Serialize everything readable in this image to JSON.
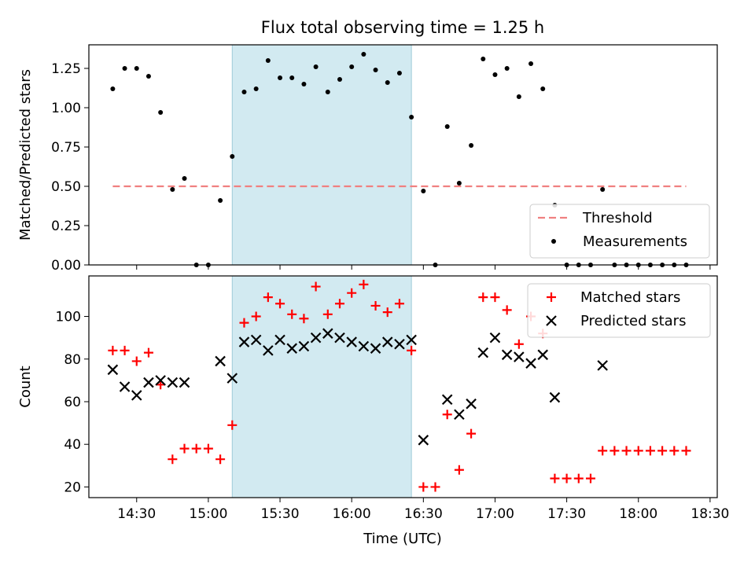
{
  "chart_data": [
    {
      "type": "scatter",
      "title": "Flux total observing time = 1.25 h",
      "ylabel": "Matched/Predicted stars",
      "xlabel": "",
      "xlim": [
        "14:10",
        "18:33"
      ],
      "ylim": [
        0,
        1.4
      ],
      "yticks": [
        "0.00",
        "0.25",
        "0.50",
        "0.75",
        "1.00",
        "1.25"
      ],
      "highlight_span": {
        "from": "15:10",
        "to": "16:25",
        "color": "#add8e6"
      },
      "legend": {
        "position": "lower-right",
        "entries": [
          "Threshold",
          "Measurements"
        ]
      },
      "series": [
        {
          "name": "Threshold",
          "style": "dashed-line",
          "color": "#f08080",
          "points": [
            {
              "x": "14:20",
              "y": 0.5
            },
            {
              "x": "18:20",
              "y": 0.5
            }
          ]
        },
        {
          "name": "Measurements",
          "style": "dot",
          "color": "#000000",
          "points": [
            {
              "x": "14:20",
              "y": 1.12
            },
            {
              "x": "14:25",
              "y": 1.25
            },
            {
              "x": "14:30",
              "y": 1.25
            },
            {
              "x": "14:35",
              "y": 1.2
            },
            {
              "x": "14:40",
              "y": 0.97
            },
            {
              "x": "14:45",
              "y": 0.48
            },
            {
              "x": "14:50",
              "y": 0.55
            },
            {
              "x": "14:55",
              "y": 0.0
            },
            {
              "x": "15:00",
              "y": 0.0
            },
            {
              "x": "15:05",
              "y": 0.41
            },
            {
              "x": "15:10",
              "y": 0.69
            },
            {
              "x": "15:15",
              "y": 1.1
            },
            {
              "x": "15:20",
              "y": 1.12
            },
            {
              "x": "15:25",
              "y": 1.3
            },
            {
              "x": "15:30",
              "y": 1.19
            },
            {
              "x": "15:35",
              "y": 1.19
            },
            {
              "x": "15:40",
              "y": 1.15
            },
            {
              "x": "15:45",
              "y": 1.26
            },
            {
              "x": "15:50",
              "y": 1.1
            },
            {
              "x": "15:55",
              "y": 1.18
            },
            {
              "x": "16:00",
              "y": 1.26
            },
            {
              "x": "16:05",
              "y": 1.34
            },
            {
              "x": "16:10",
              "y": 1.24
            },
            {
              "x": "16:15",
              "y": 1.16
            },
            {
              "x": "16:20",
              "y": 1.22
            },
            {
              "x": "16:25",
              "y": 0.94
            },
            {
              "x": "16:30",
              "y": 0.47
            },
            {
              "x": "16:35",
              "y": 0.0
            },
            {
              "x": "16:40",
              "y": 0.88
            },
            {
              "x": "16:45",
              "y": 0.52
            },
            {
              "x": "16:50",
              "y": 0.76
            },
            {
              "x": "16:55",
              "y": 1.31
            },
            {
              "x": "17:00",
              "y": 1.21
            },
            {
              "x": "17:05",
              "y": 1.25
            },
            {
              "x": "17:10",
              "y": 1.07
            },
            {
              "x": "17:15",
              "y": 1.28
            },
            {
              "x": "17:20",
              "y": 1.12
            },
            {
              "x": "17:25",
              "y": 0.38
            },
            {
              "x": "17:30",
              "y": 0.0
            },
            {
              "x": "17:35",
              "y": 0.0
            },
            {
              "x": "17:40",
              "y": 0.0
            },
            {
              "x": "17:45",
              "y": 0.48
            },
            {
              "x": "17:50",
              "y": 0.0
            },
            {
              "x": "17:55",
              "y": 0.0
            },
            {
              "x": "18:00",
              "y": 0.0
            },
            {
              "x": "18:05",
              "y": 0.0
            },
            {
              "x": "18:10",
              "y": 0.0
            },
            {
              "x": "18:15",
              "y": 0.0
            },
            {
              "x": "18:20",
              "y": 0.0
            }
          ]
        }
      ]
    },
    {
      "type": "scatter",
      "title": "",
      "xlabel": "Time (UTC)",
      "ylabel": "Count",
      "xlim": [
        "14:10",
        "18:33"
      ],
      "ylim": [
        15,
        119
      ],
      "xticks": [
        "14:30",
        "15:00",
        "15:30",
        "16:00",
        "16:30",
        "17:00",
        "17:30",
        "18:00",
        "18:30"
      ],
      "yticks": [
        "20",
        "40",
        "60",
        "80",
        "100"
      ],
      "highlight_span": {
        "from": "15:10",
        "to": "16:25",
        "color": "#add8e6"
      },
      "legend": {
        "position": "upper-right",
        "entries": [
          "Matched stars",
          "Predicted stars"
        ]
      },
      "series": [
        {
          "name": "Matched stars",
          "marker": "+",
          "color": "#ff0000",
          "points": [
            {
              "x": "14:20",
              "y": 84
            },
            {
              "x": "14:25",
              "y": 84
            },
            {
              "x": "14:30",
              "y": 79
            },
            {
              "x": "14:35",
              "y": 83
            },
            {
              "x": "14:40",
              "y": 68
            },
            {
              "x": "14:45",
              "y": 33
            },
            {
              "x": "14:50",
              "y": 38
            },
            {
              "x": "14:55",
              "y": 38
            },
            {
              "x": "15:00",
              "y": 38
            },
            {
              "x": "15:05",
              "y": 33
            },
            {
              "x": "15:10",
              "y": 49
            },
            {
              "x": "15:15",
              "y": 97
            },
            {
              "x": "15:20",
              "y": 100
            },
            {
              "x": "15:25",
              "y": 109
            },
            {
              "x": "15:30",
              "y": 106
            },
            {
              "x": "15:35",
              "y": 101
            },
            {
              "x": "15:40",
              "y": 99
            },
            {
              "x": "15:45",
              "y": 114
            },
            {
              "x": "15:50",
              "y": 101
            },
            {
              "x": "15:55",
              "y": 106
            },
            {
              "x": "16:00",
              "y": 111
            },
            {
              "x": "16:05",
              "y": 115
            },
            {
              "x": "16:10",
              "y": 105
            },
            {
              "x": "16:15",
              "y": 102
            },
            {
              "x": "16:20",
              "y": 106
            },
            {
              "x": "16:25",
              "y": 84
            },
            {
              "x": "16:30",
              "y": 20
            },
            {
              "x": "16:35",
              "y": 20
            },
            {
              "x": "16:40",
              "y": 54
            },
            {
              "x": "16:45",
              "y": 28
            },
            {
              "x": "16:50",
              "y": 45
            },
            {
              "x": "16:55",
              "y": 109
            },
            {
              "x": "17:00",
              "y": 109
            },
            {
              "x": "17:05",
              "y": 103
            },
            {
              "x": "17:10",
              "y": 87
            },
            {
              "x": "17:15",
              "y": 100
            },
            {
              "x": "17:20",
              "y": 92
            },
            {
              "x": "17:25",
              "y": 24
            },
            {
              "x": "17:30",
              "y": 24
            },
            {
              "x": "17:35",
              "y": 24
            },
            {
              "x": "17:40",
              "y": 24
            },
            {
              "x": "17:45",
              "y": 37
            },
            {
              "x": "17:50",
              "y": 37
            },
            {
              "x": "17:55",
              "y": 37
            },
            {
              "x": "18:00",
              "y": 37
            },
            {
              "x": "18:05",
              "y": 37
            },
            {
              "x": "18:10",
              "y": 37
            },
            {
              "x": "18:15",
              "y": 37
            },
            {
              "x": "18:20",
              "y": 37
            }
          ]
        },
        {
          "name": "Predicted stars",
          "marker": "x",
          "color": "#000000",
          "points": [
            {
              "x": "14:20",
              "y": 75
            },
            {
              "x": "14:25",
              "y": 67
            },
            {
              "x": "14:30",
              "y": 63
            },
            {
              "x": "14:35",
              "y": 69
            },
            {
              "x": "14:40",
              "y": 70
            },
            {
              "x": "14:45",
              "y": 69
            },
            {
              "x": "14:50",
              "y": 69
            },
            {
              "x": "15:05",
              "y": 79
            },
            {
              "x": "15:10",
              "y": 71
            },
            {
              "x": "15:15",
              "y": 88
            },
            {
              "x": "15:20",
              "y": 89
            },
            {
              "x": "15:25",
              "y": 84
            },
            {
              "x": "15:30",
              "y": 89
            },
            {
              "x": "15:35",
              "y": 85
            },
            {
              "x": "15:40",
              "y": 86
            },
            {
              "x": "15:45",
              "y": 90
            },
            {
              "x": "15:50",
              "y": 92
            },
            {
              "x": "15:55",
              "y": 90
            },
            {
              "x": "16:00",
              "y": 88
            },
            {
              "x": "16:05",
              "y": 86
            },
            {
              "x": "16:10",
              "y": 85
            },
            {
              "x": "16:15",
              "y": 88
            },
            {
              "x": "16:20",
              "y": 87
            },
            {
              "x": "16:25",
              "y": 89
            },
            {
              "x": "16:30",
              "y": 42
            },
            {
              "x": "16:40",
              "y": 61
            },
            {
              "x": "16:45",
              "y": 54
            },
            {
              "x": "16:50",
              "y": 59
            },
            {
              "x": "16:55",
              "y": 83
            },
            {
              "x": "17:00",
              "y": 90
            },
            {
              "x": "17:05",
              "y": 82
            },
            {
              "x": "17:10",
              "y": 81
            },
            {
              "x": "17:15",
              "y": 78
            },
            {
              "x": "17:20",
              "y": 82
            },
            {
              "x": "17:25",
              "y": 62
            },
            {
              "x": "17:45",
              "y": 77
            }
          ]
        }
      ]
    }
  ]
}
